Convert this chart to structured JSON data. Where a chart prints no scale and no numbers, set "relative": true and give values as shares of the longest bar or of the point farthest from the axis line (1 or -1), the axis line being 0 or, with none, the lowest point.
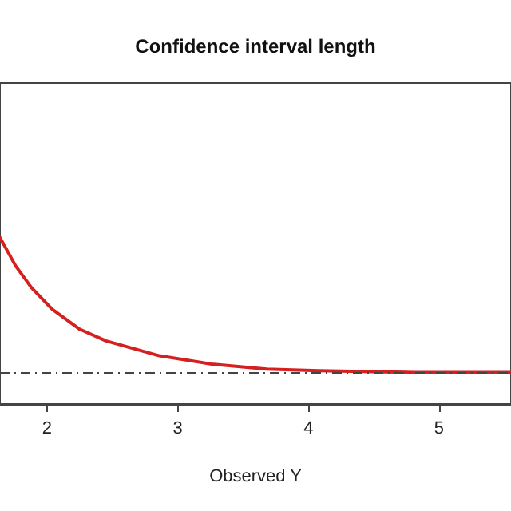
{
  "chart_data": {
    "type": "line",
    "title": "Confidence interval length",
    "xlabel": "Observed Y",
    "relative": true,
    "x": [
      1.64,
      1.76,
      1.88,
      2.04,
      2.25,
      2.45,
      2.86,
      3.26,
      3.68,
      4.08,
      4.81,
      5.54
    ],
    "series": [
      {
        "color": "#d62020",
        "values": [
          1.0,
          0.83,
          0.7,
          0.57,
          0.45,
          0.38,
          0.29,
          0.24,
          0.21,
          0.2,
          0.19,
          0.19
        ]
      }
    ],
    "xlim": [
      1.64,
      5.55
    ],
    "xticks": [
      2,
      3,
      4,
      5
    ],
    "ref_lines": [
      {
        "axis": "y",
        "value": 0.19,
        "color": "#444444",
        "line_style": "dashed"
      }
    ],
    "grid": false,
    "marker": "none",
    "line_style": "solid"
  }
}
